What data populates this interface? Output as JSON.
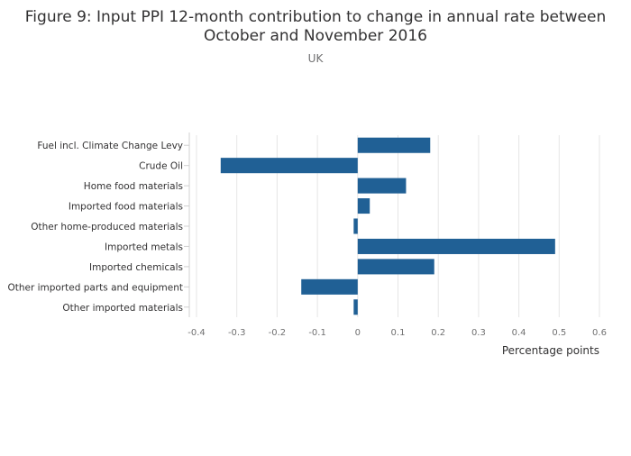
{
  "chart_data": {
    "type": "bar",
    "orientation": "horizontal",
    "title_line1": "Figure 9: Input PPI 12-month contribution to change in annual rate between",
    "title_line2": "October and November 2016",
    "subtitle": "UK",
    "xlabel": "Percentage points",
    "ylabel": "",
    "xlim": [
      -0.4,
      0.6
    ],
    "xticks": [
      -0.4,
      -0.3,
      -0.2,
      -0.1,
      0,
      0.1,
      0.2,
      0.3,
      0.4,
      0.5,
      0.6
    ],
    "xtick_labels": [
      "-0.4",
      "-0.3",
      "-0.2",
      "-0.1",
      "0",
      "0.1",
      "0.2",
      "0.3",
      "0.4",
      "0.5",
      "0.6"
    ],
    "categories": [
      "Fuel incl. Climate Change Levy",
      "Crude Oil",
      "Home food materials",
      "Imported food materials",
      "Other home-produced materials",
      "Imported metals",
      "Imported chemicals",
      "Other imported parts and equipment",
      "Other imported materials"
    ],
    "values": [
      0.18,
      -0.34,
      0.12,
      0.03,
      -0.01,
      0.49,
      0.19,
      -0.14,
      -0.01
    ],
    "bar_color": "#206095",
    "grid": true,
    "legend": "none"
  }
}
